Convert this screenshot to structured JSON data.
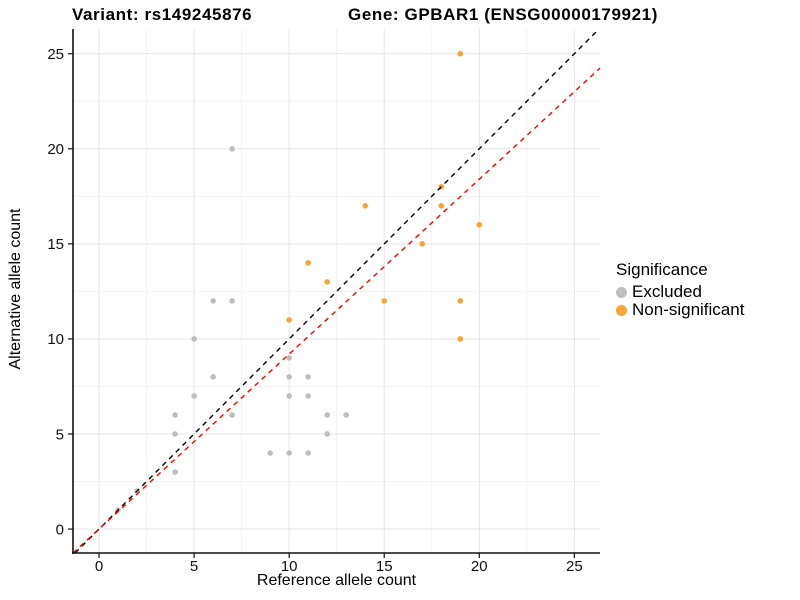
{
  "chart_data": {
    "type": "scatter",
    "title_left": "Variant: rs149245876",
    "title_right": "Gene: GPBAR1 (ENSG00000179921)",
    "xlabel": "Reference allele count",
    "ylabel": "Alternative allele count",
    "legend_title": "Significance",
    "legend_position": "right",
    "grid": true,
    "xlim": [
      -1.37,
      26.35
    ],
    "ylim": [
      -1.26,
      26.3
    ],
    "x_ticks": [
      0,
      5,
      10,
      15,
      20,
      25
    ],
    "y_ticks": [
      0,
      5,
      10,
      15,
      20,
      25
    ],
    "x_minor": [
      2.5,
      7.5,
      12.5,
      17.5,
      22.5
    ],
    "y_minor": [
      2.5,
      7.5,
      12.5,
      17.5,
      22.5
    ],
    "series": [
      {
        "name": "Excluded",
        "color": "#BEBEBE",
        "points": [
          [
            1,
            1
          ],
          [
            2,
            2
          ],
          [
            4,
            3
          ],
          [
            4,
            5
          ],
          [
            4,
            6
          ],
          [
            5,
            7
          ],
          [
            5,
            10
          ],
          [
            6,
            8
          ],
          [
            6,
            12
          ],
          [
            7,
            6
          ],
          [
            7,
            12
          ],
          [
            7,
            20
          ],
          [
            9,
            4
          ],
          [
            10,
            4
          ],
          [
            10,
            7
          ],
          [
            10,
            8
          ],
          [
            10,
            9
          ],
          [
            11,
            4
          ],
          [
            11,
            7
          ],
          [
            11,
            8
          ],
          [
            12,
            5
          ],
          [
            12,
            6
          ],
          [
            13,
            6
          ]
        ]
      },
      {
        "name": "Non-significant",
        "color": "#F9A535",
        "points": [
          [
            10,
            11
          ],
          [
            11,
            14
          ],
          [
            12,
            13
          ],
          [
            14,
            17
          ],
          [
            15,
            12
          ],
          [
            17,
            15
          ],
          [
            18,
            17
          ],
          [
            18,
            18
          ],
          [
            19,
            10
          ],
          [
            19,
            12
          ],
          [
            19,
            25
          ],
          [
            20,
            16
          ]
        ]
      }
    ],
    "ref_lines": [
      {
        "name": "identity",
        "slope": 1.0,
        "intercept": 0,
        "color": "#000000",
        "dash": "dashed"
      },
      {
        "name": "regression",
        "slope": 0.92,
        "intercept": 0,
        "color": "#FF0000",
        "dash": "dashed"
      }
    ],
    "style": {
      "major_grid_color": "#E5E5E5",
      "minor_grid_color": "#F2F2F2",
      "axis_line_color": "#111111",
      "tick_label_color": "#111111"
    }
  }
}
